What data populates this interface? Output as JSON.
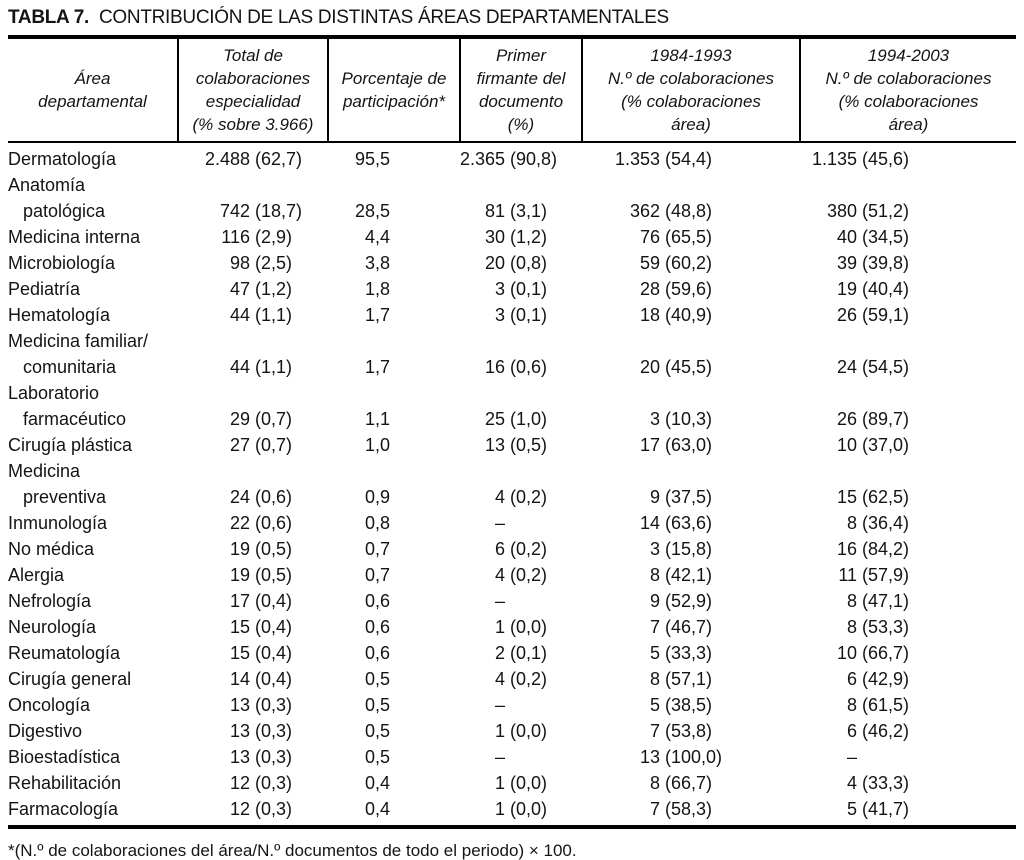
{
  "title": {
    "label": "TABLA 7.",
    "text": "CONTRIBUCIÓN DE LAS DISTINTAS ÁREAS DEPARTAMENTALES"
  },
  "table": {
    "columns": [
      {
        "id": "area",
        "header_lines": [
          "Área",
          "departamental"
        ]
      },
      {
        "id": "total",
        "header_lines": [
          "Total de",
          "colaboraciones",
          "especialidad",
          "(% sobre 3.966)"
        ]
      },
      {
        "id": "participacion",
        "header_lines": [
          "Porcentaje de",
          "participación*"
        ]
      },
      {
        "id": "primer_firmante",
        "header_lines": [
          "Primer",
          "firmante del",
          "documento",
          "(%)"
        ]
      },
      {
        "id": "p1984_1993",
        "header_lines": [
          "1984-1993",
          "N.º de colaboraciones",
          "(% colaboraciones",
          "área)"
        ]
      },
      {
        "id": "p1994_2003",
        "header_lines": [
          "1994-2003",
          "N.º de colaboraciones",
          "(% colaboraciones",
          "área)"
        ]
      }
    ],
    "rows": [
      {
        "area_lines": [
          "Dermatología"
        ],
        "total": "2.488 (62,7)",
        "participacion": "95,5",
        "primer_firmante": "2.365 (90,8)",
        "p1984_1993": "1.353 (54,4)",
        "p1994_2003": "1.135 (45,6)"
      },
      {
        "area_lines": [
          "Anatomía",
          "patológica"
        ],
        "total": "742 (18,7)",
        "participacion": "28,5",
        "primer_firmante": "81 (3,1)",
        "p1984_1993": "362 (48,8)",
        "p1994_2003": "380 (51,2)"
      },
      {
        "area_lines": [
          "Medicina interna"
        ],
        "total": "116 (2,9)",
        "participacion": "4,4",
        "primer_firmante": "30 (1,2)",
        "p1984_1993": "76 (65,5)",
        "p1994_2003": "40 (34,5)"
      },
      {
        "area_lines": [
          "Microbiología"
        ],
        "total": "98 (2,5)",
        "participacion": "3,8",
        "primer_firmante": "20 (0,8)",
        "p1984_1993": "59 (60,2)",
        "p1994_2003": "39 (39,8)"
      },
      {
        "area_lines": [
          "Pediatría"
        ],
        "total": "47 (1,2)",
        "participacion": "1,8",
        "primer_firmante": "3 (0,1)",
        "p1984_1993": "28 (59,6)",
        "p1994_2003": "19 (40,4)"
      },
      {
        "area_lines": [
          "Hematología"
        ],
        "total": "44 (1,1)",
        "participacion": "1,7",
        "primer_firmante": "3 (0,1)",
        "p1984_1993": "18 (40,9)",
        "p1994_2003": "26 (59,1)"
      },
      {
        "area_lines": [
          "Medicina familiar/",
          "comunitaria"
        ],
        "total": "44 (1,1)",
        "participacion": "1,7",
        "primer_firmante": "16 (0,6)",
        "p1984_1993": "20 (45,5)",
        "p1994_2003": "24 (54,5)"
      },
      {
        "area_lines": [
          "Laboratorio",
          "farmacéutico"
        ],
        "total": "29 (0,7)",
        "participacion": "1,1",
        "primer_firmante": "25 (1,0)",
        "p1984_1993": "3 (10,3)",
        "p1994_2003": "26 (89,7)"
      },
      {
        "area_lines": [
          "Cirugía plástica"
        ],
        "total": "27 (0,7)",
        "participacion": "1,0",
        "primer_firmante": "13 (0,5)",
        "p1984_1993": "17 (63,0)",
        "p1994_2003": "10 (37,0)"
      },
      {
        "area_lines": [
          "Medicina",
          "preventiva"
        ],
        "total": "24 (0,6)",
        "participacion": "0,9",
        "primer_firmante": "4 (0,2)",
        "p1984_1993": "9 (37,5)",
        "p1994_2003": "15 (62,5)"
      },
      {
        "area_lines": [
          "Inmunología"
        ],
        "total": "22 (0,6)",
        "participacion": "0,8",
        "primer_firmante": "–",
        "p1984_1993": "14 (63,6)",
        "p1994_2003": "8 (36,4)"
      },
      {
        "area_lines": [
          "No médica"
        ],
        "total": "19 (0,5)",
        "participacion": "0,7",
        "primer_firmante": "6 (0,2)",
        "p1984_1993": "3 (15,8)",
        "p1994_2003": "16 (84,2)"
      },
      {
        "area_lines": [
          "Alergia"
        ],
        "total": "19 (0,5)",
        "participacion": "0,7",
        "primer_firmante": "4 (0,2)",
        "p1984_1993": "8 (42,1)",
        "p1994_2003": "11 (57,9)"
      },
      {
        "area_lines": [
          "Nefrología"
        ],
        "total": "17 (0,4)",
        "participacion": "0,6",
        "primer_firmante": "–",
        "p1984_1993": "9 (52,9)",
        "p1994_2003": "8 (47,1)"
      },
      {
        "area_lines": [
          "Neurología"
        ],
        "total": "15 (0,4)",
        "participacion": "0,6",
        "primer_firmante": "1 (0,0)",
        "p1984_1993": "7 (46,7)",
        "p1994_2003": "8 (53,3)"
      },
      {
        "area_lines": [
          "Reumatología"
        ],
        "total": "15 (0,4)",
        "participacion": "0,6",
        "primer_firmante": "2 (0,1)",
        "p1984_1993": "5 (33,3)",
        "p1994_2003": "10 (66,7)"
      },
      {
        "area_lines": [
          "Cirugía general"
        ],
        "total": "14 (0,4)",
        "participacion": "0,5",
        "primer_firmante": "4 (0,2)",
        "p1984_1993": "8 (57,1)",
        "p1994_2003": "6 (42,9)"
      },
      {
        "area_lines": [
          "Oncología"
        ],
        "total": "13 (0,3)",
        "participacion": "0,5",
        "primer_firmante": "–",
        "p1984_1993": "5 (38,5)",
        "p1994_2003": "8 (61,5)"
      },
      {
        "area_lines": [
          "Digestivo"
        ],
        "total": "13 (0,3)",
        "participacion": "0,5",
        "primer_firmante": "1 (0,0)",
        "p1984_1993": "7 (53,8)",
        "p1994_2003": "6 (46,2)"
      },
      {
        "area_lines": [
          "Bioestadística"
        ],
        "total": "13 (0,3)",
        "participacion": "0,5",
        "primer_firmante": "–",
        "p1984_1993": "13 (100,0)",
        "p1994_2003": "–"
      },
      {
        "area_lines": [
          "Rehabilitación"
        ],
        "total": "12 (0,3)",
        "participacion": "0,4",
        "primer_firmante": "1 (0,0)",
        "p1984_1993": "8 (66,7)",
        "p1994_2003": "4 (33,3)"
      },
      {
        "area_lines": [
          "Farmacología"
        ],
        "total": "12 (0,3)",
        "participacion": "0,4",
        "primer_firmante": "1 (0,0)",
        "p1984_1993": "7 (58,3)",
        "p1994_2003": "5 (41,7)"
      }
    ]
  },
  "footnote": "*(N.º de colaboraciones del área/N.º documentos de todo el periodo) × 100."
}
